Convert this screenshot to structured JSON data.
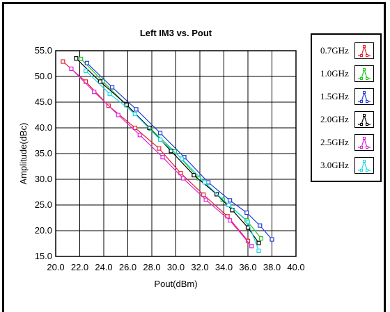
{
  "chart_data": {
    "type": "line",
    "title": "Left IM3 vs. Pout",
    "xlabel": "Pout(dBm)",
    "ylabel": "Amplitude(dBc)",
    "xlim": [
      20.0,
      40.0
    ],
    "ylim": [
      15.0,
      55.0
    ],
    "x_ticks": [
      "20.0",
      "22.0",
      "24.0",
      "26.0",
      "28.0",
      "30.0",
      "32.0",
      "34.0",
      "36.0",
      "38.0",
      "40.0"
    ],
    "y_ticks": [
      "15.0",
      "20.0",
      "25.0",
      "30.0",
      "35.0",
      "40.0",
      "45.0",
      "50.0",
      "55.0"
    ],
    "grid": true,
    "legend_position": "right",
    "series": [
      {
        "name": "0.7GHz",
        "color": "#e8202a",
        "points": [
          [
            20.6,
            52.9
          ],
          [
            22.5,
            49.0
          ],
          [
            24.4,
            44.3
          ],
          [
            26.6,
            40.0
          ],
          [
            28.6,
            36.0
          ],
          [
            30.4,
            31.2
          ],
          [
            32.3,
            27.0
          ],
          [
            34.3,
            22.8
          ],
          [
            36.0,
            18.0
          ]
        ]
      },
      {
        "name": "1.0GHz",
        "color": "#22c822",
        "points": [
          [
            22.1,
            53.4
          ],
          [
            23.9,
            49.1
          ],
          [
            25.9,
            44.4
          ],
          [
            27.9,
            39.8
          ],
          [
            29.9,
            35.4
          ],
          [
            31.9,
            30.2
          ],
          [
            33.9,
            26.0
          ],
          [
            35.9,
            22.0
          ],
          [
            37.1,
            18.5
          ]
        ]
      },
      {
        "name": "1.5GHz",
        "color": "#1f3fd8",
        "points": [
          [
            22.6,
            52.6
          ],
          [
            24.7,
            47.9
          ],
          [
            26.7,
            43.6
          ],
          [
            28.7,
            39.0
          ],
          [
            30.7,
            34.3
          ],
          [
            32.7,
            29.4
          ],
          [
            34.5,
            25.9
          ],
          [
            35.9,
            23.5
          ],
          [
            37.0,
            21.0
          ],
          [
            38.0,
            18.3
          ]
        ]
      },
      {
        "name": "2.0GHz",
        "color": "#000000",
        "points": [
          [
            21.7,
            53.5
          ],
          [
            23.7,
            49.0
          ],
          [
            25.9,
            44.5
          ],
          [
            27.8,
            40.0
          ],
          [
            29.6,
            35.5
          ],
          [
            31.5,
            30.8
          ],
          [
            33.4,
            27.1
          ],
          [
            34.7,
            24.0
          ],
          [
            36.0,
            20.6
          ],
          [
            36.9,
            17.6
          ]
        ]
      },
      {
        "name": "2.5GHz",
        "color": "#e020d8",
        "points": [
          [
            21.3,
            51.5
          ],
          [
            23.2,
            47.0
          ],
          [
            25.2,
            42.5
          ],
          [
            27.0,
            38.6
          ],
          [
            28.9,
            34.3
          ],
          [
            30.6,
            30.2
          ],
          [
            32.5,
            26.0
          ],
          [
            34.5,
            22.0
          ],
          [
            36.3,
            17.0
          ]
        ]
      },
      {
        "name": "3.0GHz",
        "color": "#19d8e6",
        "points": [
          [
            22.5,
            51.1
          ],
          [
            24.5,
            46.6
          ],
          [
            26.6,
            42.7
          ],
          [
            28.7,
            37.7
          ],
          [
            30.5,
            34.0
          ],
          [
            32.4,
            29.4
          ],
          [
            34.4,
            25.0
          ],
          [
            36.0,
            21.7
          ],
          [
            36.9,
            16.1
          ]
        ]
      }
    ]
  }
}
